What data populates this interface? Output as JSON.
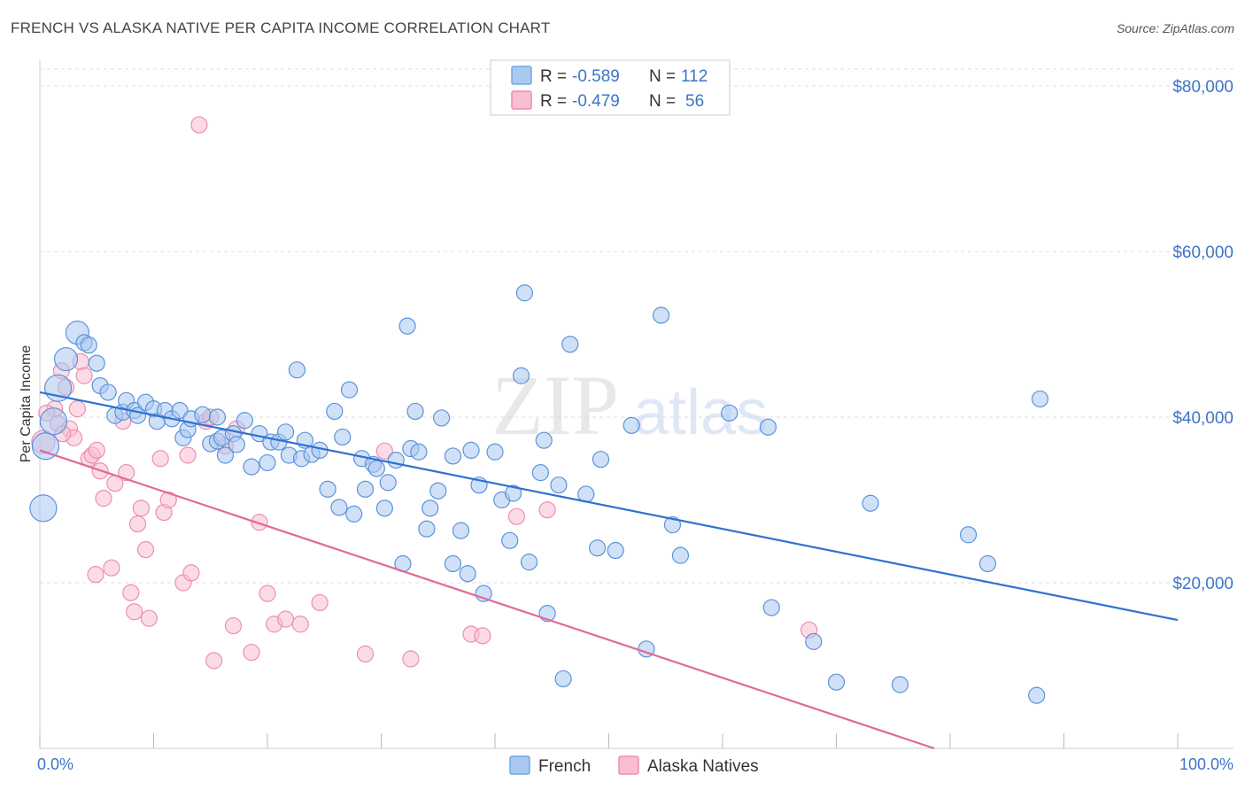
{
  "header": {
    "title": "FRENCH VS ALASKA NATIVE PER CAPITA INCOME CORRELATION CHART",
    "source": "Source: ZipAtlas.com"
  },
  "watermark": {
    "part1": "ZIP",
    "part2": "atlas"
  },
  "legend": {
    "rows": [
      {
        "r_label": "R =",
        "r_value": "-0.589",
        "n_label": "N =",
        "n_value": "112",
        "color": "#6fa8e8"
      },
      {
        "r_label": "R =",
        "r_value": "-0.479",
        "n_label": "N =",
        "n_value": "56",
        "color": "#f08cb0"
      }
    ]
  },
  "bottom_legend": {
    "items": [
      "French",
      "Alaska Natives"
    ]
  },
  "colors": {
    "french_fill": "#aac8f0",
    "french_stroke": "#5b93db",
    "french_line": "#2f72d0",
    "alaska_fill": "#f8bfd2",
    "alaska_stroke": "#ee8db0",
    "alaska_line": "#e06a98",
    "grid": "#dddddd",
    "tick_text": "#3d74c9"
  },
  "chart_data": {
    "type": "scatter",
    "title": "FRENCH VS ALASKA NATIVE PER CAPITA INCOME CORRELATION CHART",
    "xlabel": "",
    "ylabel": "Per Capita Income",
    "x_tick_labels": [
      "0.0%",
      "100.0%"
    ],
    "y_tick_labels": [
      "$20,000",
      "$40,000",
      "$60,000",
      "$80,000"
    ],
    "y_ticks": [
      20000,
      40000,
      60000,
      80000
    ],
    "xlim": [
      0,
      100
    ],
    "ylim": [
      0,
      82000
    ],
    "grid": true,
    "legend_position": "top-center",
    "series": [
      {
        "name": "French",
        "r": -0.589,
        "n": 112,
        "trend": {
          "x": [
            0,
            100
          ],
          "y": [
            43000,
            15500
          ]
        },
        "points": [
          [
            0.3,
            29000,
            3
          ],
          [
            0.5,
            36500,
            3
          ],
          [
            1.2,
            39500,
            3
          ],
          [
            1.6,
            43500,
            3
          ],
          [
            2.3,
            47000,
            2
          ],
          [
            3.3,
            50200,
            2
          ],
          [
            3.9,
            49000,
            1
          ],
          [
            4.3,
            48700,
            1
          ],
          [
            5.0,
            46500,
            1
          ],
          [
            5.3,
            43800,
            1
          ],
          [
            6.0,
            43000,
            1
          ],
          [
            6.6,
            40200,
            1
          ],
          [
            7.3,
            40600,
            1
          ],
          [
            7.6,
            42000,
            1
          ],
          [
            8.3,
            40800,
            1
          ],
          [
            8.6,
            40200,
            1
          ],
          [
            9.3,
            41800,
            1
          ],
          [
            10.0,
            41000,
            1
          ],
          [
            10.3,
            39500,
            1
          ],
          [
            11.0,
            40800,
            1
          ],
          [
            11.6,
            39800,
            1
          ],
          [
            12.3,
            40800,
            1
          ],
          [
            12.6,
            37500,
            1
          ],
          [
            13.0,
            38500,
            1
          ],
          [
            13.3,
            39800,
            1
          ],
          [
            14.3,
            40300,
            1
          ],
          [
            15.0,
            36800,
            1
          ],
          [
            15.6,
            37100,
            1
          ],
          [
            15.6,
            40000,
            1
          ],
          [
            16.3,
            35400,
            1
          ],
          [
            16.0,
            37500,
            1
          ],
          [
            17.0,
            38000,
            1
          ],
          [
            17.3,
            36700,
            1
          ],
          [
            18.0,
            39600,
            1
          ],
          [
            18.6,
            34000,
            1
          ],
          [
            19.3,
            38000,
            1
          ],
          [
            20.0,
            34500,
            1
          ],
          [
            20.3,
            37000,
            1
          ],
          [
            21.0,
            37000,
            1
          ],
          [
            21.6,
            38200,
            1
          ],
          [
            21.9,
            35400,
            1
          ],
          [
            22.6,
            45700,
            1
          ],
          [
            23.0,
            35000,
            1
          ],
          [
            23.3,
            37200,
            1
          ],
          [
            23.9,
            35500,
            1
          ],
          [
            24.6,
            36000,
            1
          ],
          [
            25.3,
            31300,
            1
          ],
          [
            25.9,
            40700,
            1
          ],
          [
            26.3,
            29100,
            1
          ],
          [
            26.6,
            37600,
            1
          ],
          [
            27.6,
            28300,
            1
          ],
          [
            27.2,
            43300,
            1
          ],
          [
            28.3,
            35000,
            1
          ],
          [
            28.6,
            31300,
            1
          ],
          [
            29.3,
            34300,
            1
          ],
          [
            29.6,
            33800,
            1
          ],
          [
            30.3,
            29000,
            1
          ],
          [
            30.6,
            32100,
            1
          ],
          [
            31.3,
            34800,
            1
          ],
          [
            31.9,
            22300,
            1
          ],
          [
            32.3,
            51000,
            1
          ],
          [
            32.6,
            36200,
            1
          ],
          [
            33.0,
            40700,
            1
          ],
          [
            33.3,
            35800,
            1
          ],
          [
            34.0,
            26500,
            1
          ],
          [
            34.3,
            29000,
            1
          ],
          [
            35.0,
            31100,
            1
          ],
          [
            35.3,
            39900,
            1
          ],
          [
            36.3,
            35300,
            1
          ],
          [
            36.3,
            22300,
            1
          ],
          [
            37.0,
            26300,
            1
          ],
          [
            37.6,
            21100,
            1
          ],
          [
            37.9,
            36000,
            1
          ],
          [
            38.6,
            31800,
            1
          ],
          [
            39.0,
            18700,
            1
          ],
          [
            40.0,
            35800,
            1
          ],
          [
            40.6,
            30000,
            1
          ],
          [
            41.3,
            25100,
            1
          ],
          [
            41.6,
            30800,
            1
          ],
          [
            42.3,
            45000,
            1
          ],
          [
            42.6,
            55000,
            1
          ],
          [
            43.0,
            22500,
            1
          ],
          [
            44.0,
            33300,
            1
          ],
          [
            44.3,
            37200,
            1
          ],
          [
            44.6,
            16300,
            1
          ],
          [
            45.6,
            31800,
            1
          ],
          [
            46.0,
            8400,
            1
          ],
          [
            46.6,
            48800,
            1
          ],
          [
            48.0,
            30700,
            1
          ],
          [
            49.0,
            24200,
            1
          ],
          [
            49.3,
            34900,
            1
          ],
          [
            50.6,
            23900,
            1
          ],
          [
            52.0,
            39000,
            1
          ],
          [
            53.3,
            12000,
            1
          ],
          [
            54.6,
            52300,
            1
          ],
          [
            55.6,
            27000,
            1
          ],
          [
            56.3,
            23300,
            1
          ],
          [
            60.6,
            40500,
            1
          ],
          [
            64.0,
            38800,
            1
          ],
          [
            64.3,
            17000,
            1
          ],
          [
            68.0,
            12900,
            1
          ],
          [
            70.0,
            8000,
            1
          ],
          [
            73.0,
            29600,
            1
          ],
          [
            75.6,
            7700,
            1
          ],
          [
            81.6,
            25800,
            1
          ],
          [
            83.3,
            22300,
            1
          ],
          [
            87.6,
            6400,
            1
          ],
          [
            87.9,
            42200,
            1
          ]
        ]
      },
      {
        "name": "Alaska Natives",
        "r": -0.479,
        "n": 56,
        "trend": {
          "x": [
            0,
            78.6
          ],
          "y": [
            36000,
            0
          ]
        },
        "points": [
          [
            0.3,
            37000,
            2
          ],
          [
            1.3,
            41000,
            1
          ],
          [
            1.6,
            39200,
            1
          ],
          [
            1.9,
            45600,
            1
          ],
          [
            2.3,
            43600,
            1
          ],
          [
            2.6,
            38600,
            1
          ],
          [
            3.0,
            37500,
            1
          ],
          [
            3.3,
            41000,
            1
          ],
          [
            3.6,
            46700,
            1
          ],
          [
            3.9,
            45000,
            1
          ],
          [
            4.3,
            35000,
            1
          ],
          [
            4.6,
            35400,
            1
          ],
          [
            4.9,
            21000,
            1
          ],
          [
            5.3,
            33500,
            1
          ],
          [
            5.6,
            30200,
            1
          ],
          [
            6.3,
            21800,
            1
          ],
          [
            6.6,
            32000,
            1
          ],
          [
            7.3,
            39500,
            1
          ],
          [
            7.6,
            33300,
            1
          ],
          [
            8.0,
            18800,
            1
          ],
          [
            8.3,
            16500,
            1
          ],
          [
            8.6,
            27100,
            1
          ],
          [
            8.9,
            29000,
            1
          ],
          [
            9.3,
            24000,
            1
          ],
          [
            9.6,
            15700,
            1
          ],
          [
            10.6,
            35000,
            1
          ],
          [
            10.9,
            28500,
            1
          ],
          [
            11.3,
            30000,
            1
          ],
          [
            12.6,
            20000,
            1
          ],
          [
            13.0,
            35400,
            1
          ],
          [
            13.3,
            21200,
            1
          ],
          [
            14.0,
            75300,
            1
          ],
          [
            14.6,
            39500,
            1
          ],
          [
            15.0,
            40000,
            1
          ],
          [
            15.3,
            10600,
            1
          ],
          [
            16.3,
            36500,
            1
          ],
          [
            17.0,
            14800,
            1
          ],
          [
            17.3,
            38600,
            1
          ],
          [
            18.6,
            11600,
            1
          ],
          [
            19.3,
            27300,
            1
          ],
          [
            20.0,
            18700,
            1
          ],
          [
            20.6,
            15000,
            1
          ],
          [
            21.6,
            15600,
            1
          ],
          [
            22.9,
            15000,
            1
          ],
          [
            24.6,
            17600,
            1
          ],
          [
            28.6,
            11400,
            1
          ],
          [
            30.3,
            35900,
            1
          ],
          [
            32.6,
            10800,
            1
          ],
          [
            37.9,
            13800,
            1
          ],
          [
            38.9,
            13600,
            1
          ],
          [
            41.9,
            28000,
            1
          ],
          [
            44.6,
            28800,
            1
          ],
          [
            67.6,
            14300,
            1
          ],
          [
            0.6,
            40500,
            1
          ],
          [
            2.0,
            38000,
            1
          ],
          [
            5.0,
            36000,
            1
          ]
        ]
      }
    ]
  }
}
